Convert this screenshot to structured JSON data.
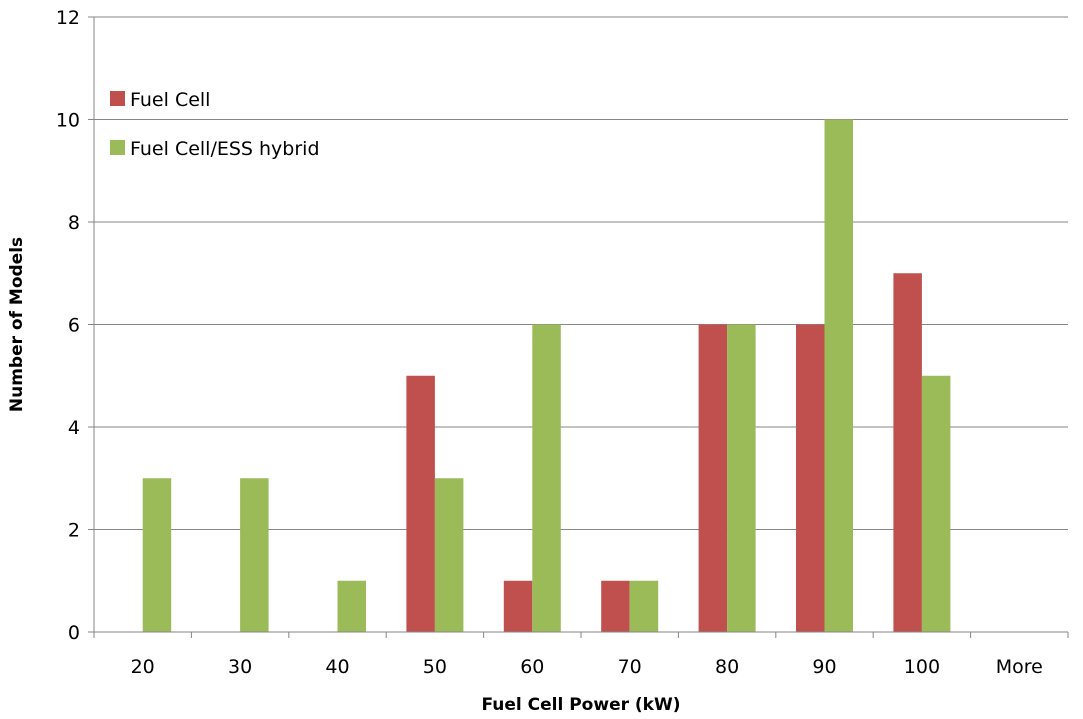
{
  "chart_data": {
    "type": "bar",
    "categories": [
      "20",
      "30",
      "40",
      "50",
      "60",
      "70",
      "80",
      "90",
      "100",
      "More"
    ],
    "series": [
      {
        "name": "Fuel Cell",
        "color": "#c0504d",
        "values": [
          0,
          0,
          0,
          5,
          1,
          1,
          6,
          6,
          7,
          0
        ]
      },
      {
        "name": "Fuel Cell/ESS hybrid",
        "color": "#9bbb59",
        "values": [
          3,
          3,
          1,
          3,
          6,
          1,
          6,
          10,
          5,
          0
        ]
      }
    ],
    "xlabel": "Fuel Cell Power (kW)",
    "ylabel": "Number of Models",
    "ylim": [
      0,
      12
    ],
    "yticks": [
      "0",
      "2",
      "4",
      "6",
      "8",
      "10",
      "12"
    ],
    "grid": true,
    "legend_position": "top-left"
  }
}
